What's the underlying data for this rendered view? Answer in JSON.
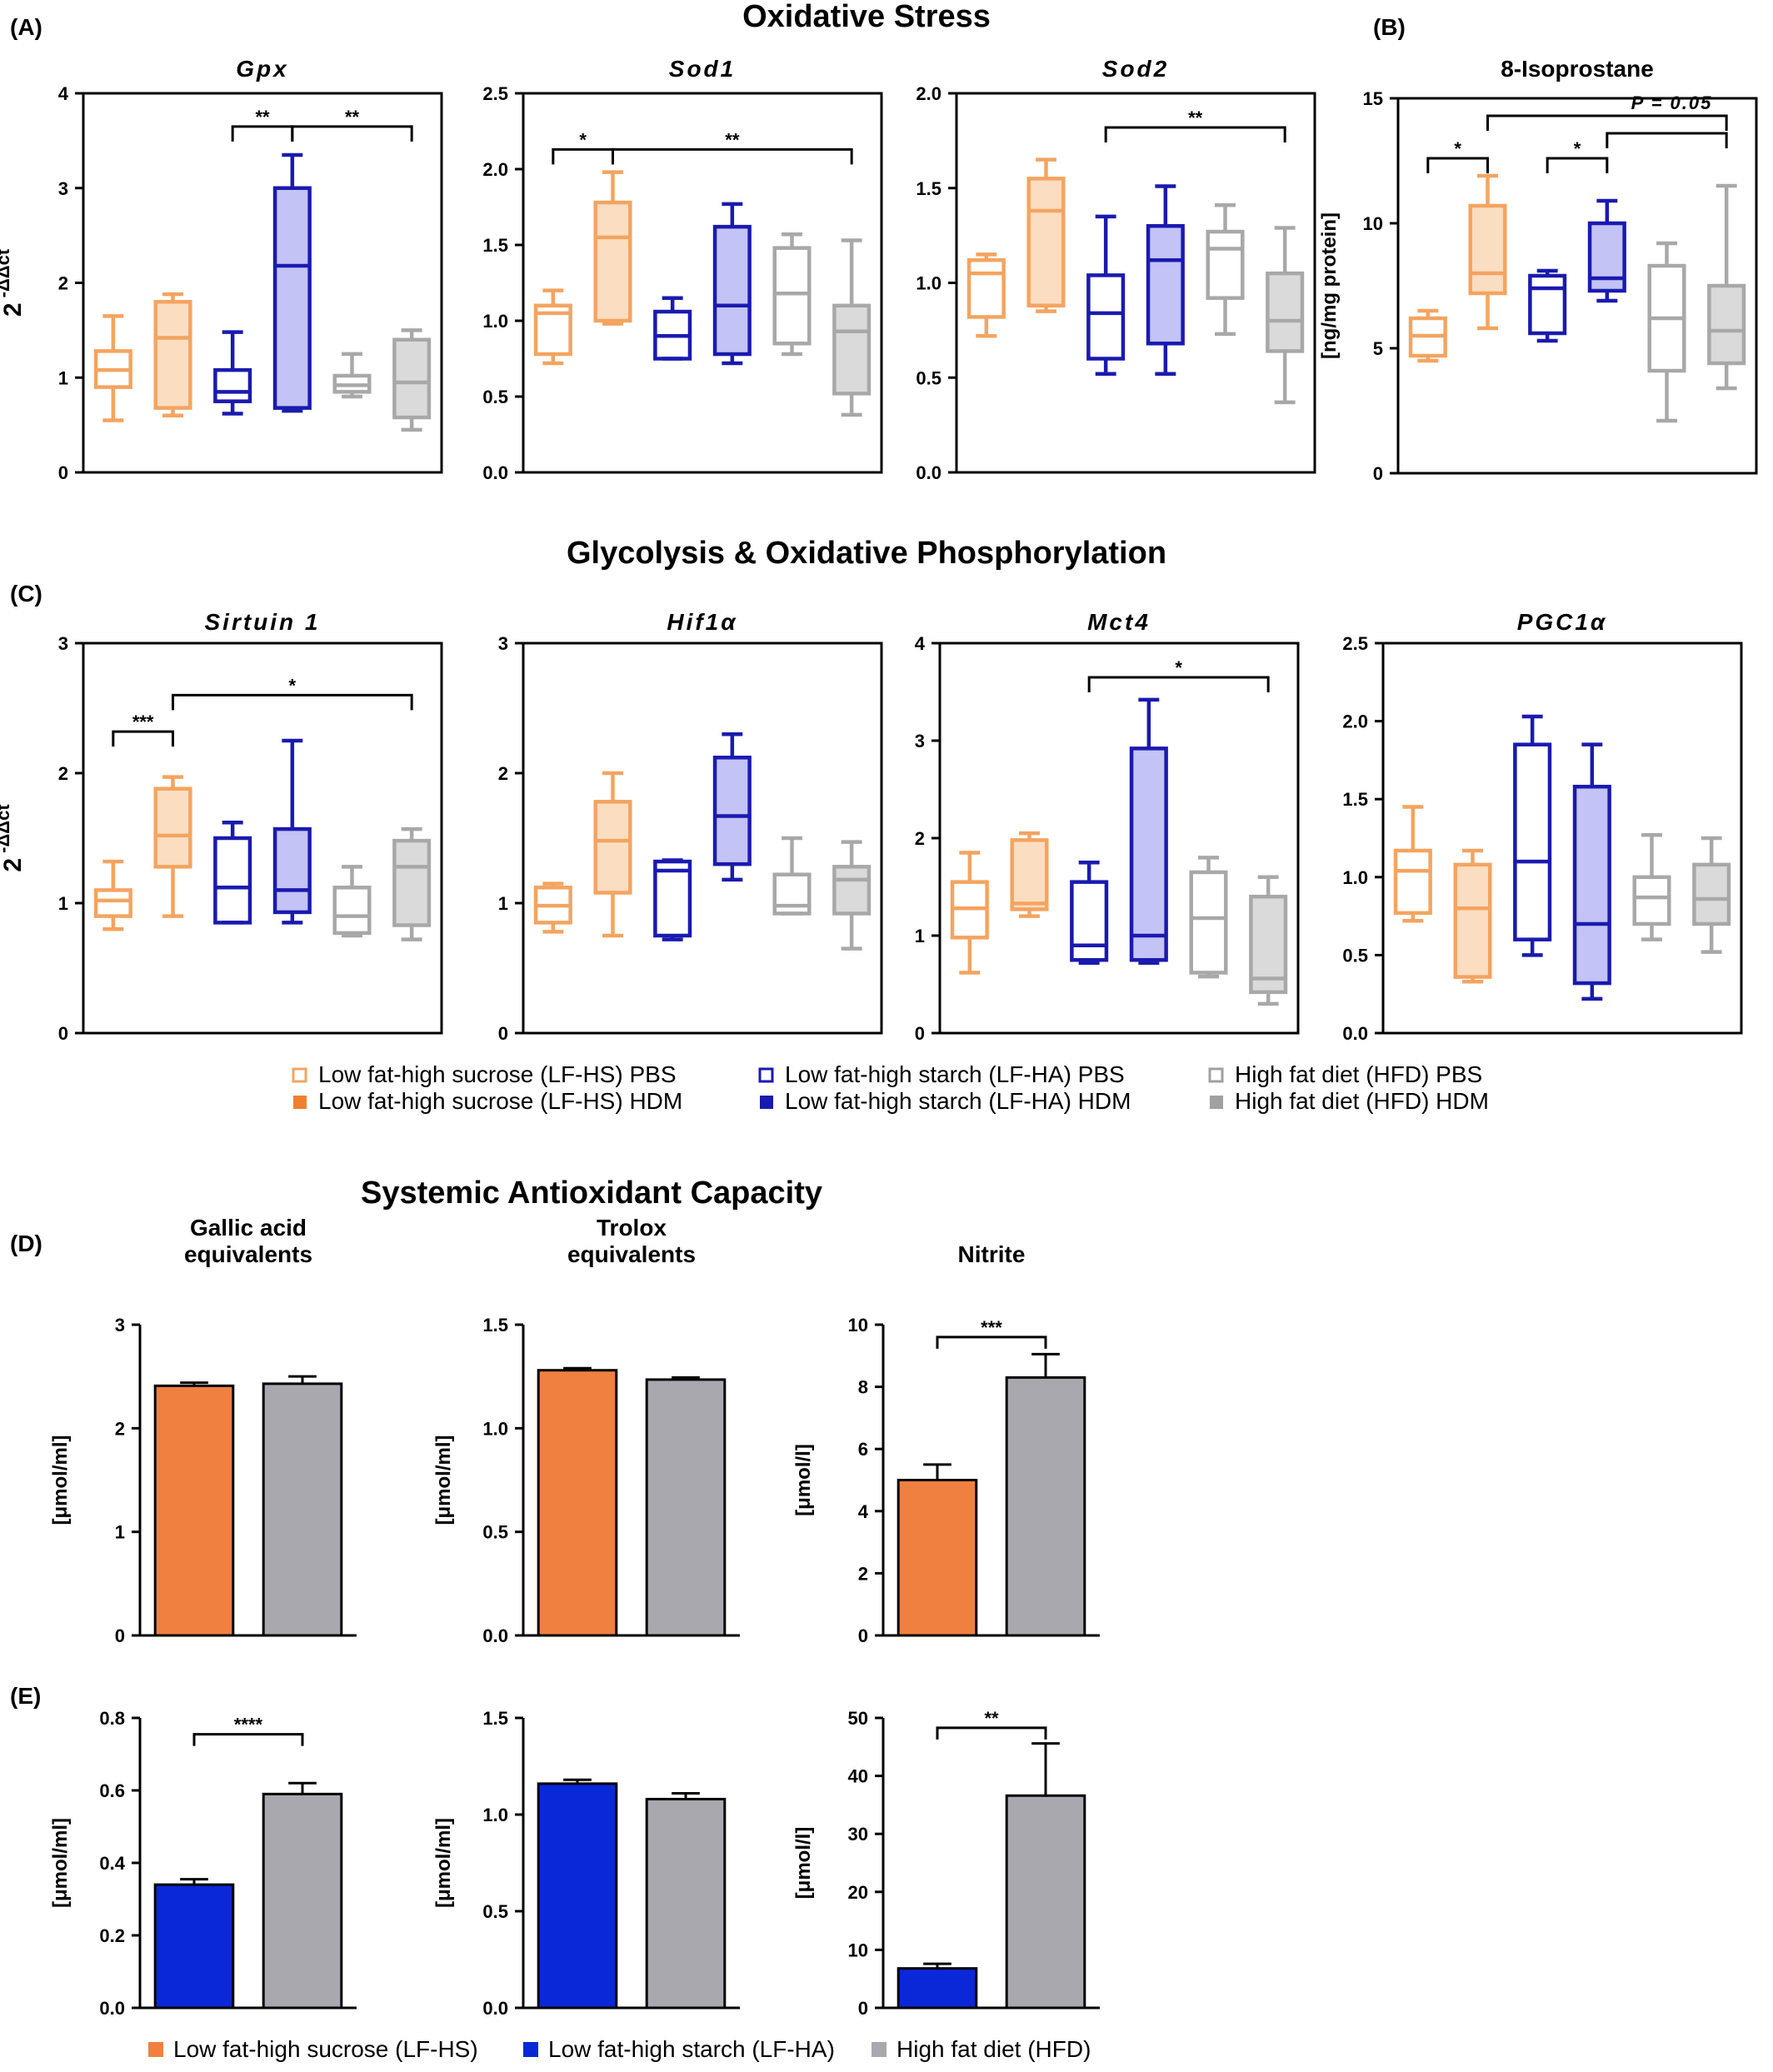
{
  "sections": {
    "oxidative_stress": "Oxidative Stress",
    "glycolysis": "Glycolysis & Oxidative Phosphorylation",
    "systemic": "Systemic Antioxidant Capacity"
  },
  "panel_letters": {
    "A": "(A)",
    "B": "(B)",
    "C": "(C)",
    "D": "(D)",
    "E": "(E)"
  },
  "legend_box": {
    "items": [
      {
        "label": "Low fat-high sucrose (LF-HS) PBS",
        "color": "#F4A460",
        "style": "open"
      },
      {
        "label": "Low fat-high sucrose (LF-HS) HDM",
        "color": "#F08030",
        "style": "filled"
      },
      {
        "label": "Low fat-high starch (LF-HA) PBS",
        "color": "#1A1AB0",
        "style": "open"
      },
      {
        "label": "Low fat-high starch (LF-HA) HDM",
        "color": "#1A1AB0",
        "style": "filled"
      },
      {
        "label": "High fat diet (HFD) PBS",
        "color": "#A0A0A0",
        "style": "open"
      },
      {
        "label": "High fat diet (HFD) HDM",
        "color": "#A0A0A0",
        "style": "filled"
      }
    ]
  },
  "legend_bar": {
    "items": [
      {
        "label": "Low fat-high sucrose (LF-HS)",
        "color": "#F08040"
      },
      {
        "label": "Low fat-high starch (LF-HA)",
        "color": "#0A28D8"
      },
      {
        "label": "High fat diet (HFD)",
        "color": "#A8A8AE"
      }
    ]
  },
  "colors": {
    "orange_line": "#F4A460",
    "orange_fill": "#FBDDC2",
    "blue_line": "#1A1AB0",
    "blue_fill": "#C3C3F5",
    "gray_line": "#A8A8A8",
    "gray_fill": "#DADADA",
    "bar_orange": "#F08040",
    "bar_blue": "#0A28D8",
    "bar_gray": "#A8A8AE"
  },
  "chart_data": [
    {
      "id": "gpx",
      "type": "box",
      "title": "Gpx",
      "title_style": "italic",
      "ylabel": "2 -ΔΔct",
      "ylim": [
        0,
        4
      ],
      "yticks": [
        "0",
        "1",
        "2",
        "3",
        "4"
      ],
      "groups": [
        {
          "series": "LF-HS PBS",
          "min": 0.55,
          "q1": 0.9,
          "median": 1.08,
          "q3": 1.28,
          "max": 1.65
        },
        {
          "series": "LF-HS HDM",
          "min": 0.6,
          "q1": 0.68,
          "median": 1.42,
          "q3": 1.8,
          "max": 1.88
        },
        {
          "series": "LF-HA PBS",
          "min": 0.62,
          "q1": 0.75,
          "median": 0.85,
          "q3": 1.08,
          "max": 1.48
        },
        {
          "series": "LF-HA HDM",
          "min": 0.65,
          "q1": 0.68,
          "median": 2.18,
          "q3": 3.0,
          "max": 3.35
        },
        {
          "series": "HFD PBS",
          "min": 0.8,
          "q1": 0.85,
          "median": 0.92,
          "q3": 1.02,
          "max": 1.25
        },
        {
          "series": "HFD HDM",
          "min": 0.45,
          "q1": 0.58,
          "median": 0.95,
          "q3": 1.4,
          "max": 1.5
        }
      ],
      "brackets": [
        {
          "from": 3,
          "to": 4,
          "label": "**",
          "y": 3.65
        },
        {
          "from": 4,
          "to": 6,
          "label": "**",
          "y": 3.65
        }
      ]
    },
    {
      "id": "sod1",
      "type": "box",
      "title": "Sod1",
      "title_style": "italic",
      "ylim": [
        0,
        2.5
      ],
      "yticks": [
        "0.0",
        "0.5",
        "1.0",
        "1.5",
        "2.0",
        "2.5"
      ],
      "groups": [
        {
          "series": "LF-HS PBS",
          "min": 0.72,
          "q1": 0.78,
          "median": 1.05,
          "q3": 1.1,
          "max": 1.2
        },
        {
          "series": "LF-HS HDM",
          "min": 0.98,
          "q1": 1.0,
          "median": 1.55,
          "q3": 1.78,
          "max": 1.98
        },
        {
          "series": "LF-HA PBS",
          "min": 0.75,
          "q1": 0.75,
          "median": 0.9,
          "q3": 1.06,
          "max": 1.15
        },
        {
          "series": "LF-HA HDM",
          "min": 0.72,
          "q1": 0.78,
          "median": 1.1,
          "q3": 1.62,
          "max": 1.77
        },
        {
          "series": "HFD PBS",
          "min": 0.78,
          "q1": 0.85,
          "median": 1.18,
          "q3": 1.48,
          "max": 1.57
        },
        {
          "series": "HFD HDM",
          "min": 0.38,
          "q1": 0.52,
          "median": 0.93,
          "q3": 1.1,
          "max": 1.53
        }
      ],
      "brackets": [
        {
          "from": 1,
          "to": 2,
          "label": "*",
          "y": 2.13
        },
        {
          "from": 2,
          "to": 6,
          "label": "**",
          "y": 2.13
        }
      ]
    },
    {
      "id": "sod2",
      "type": "box",
      "title": "Sod2",
      "title_style": "italic",
      "ylim": [
        0,
        2.0
      ],
      "yticks": [
        "0.0",
        "0.5",
        "1.0",
        "1.5",
        "2.0"
      ],
      "groups": [
        {
          "series": "LF-HS PBS",
          "min": 0.72,
          "q1": 0.82,
          "median": 1.05,
          "q3": 1.12,
          "max": 1.15
        },
        {
          "series": "LF-HS HDM",
          "min": 0.85,
          "q1": 0.88,
          "median": 1.38,
          "q3": 1.55,
          "max": 1.65
        },
        {
          "series": "LF-HA PBS",
          "min": 0.52,
          "q1": 0.6,
          "median": 0.84,
          "q3": 1.04,
          "max": 1.35
        },
        {
          "series": "LF-HA HDM",
          "min": 0.52,
          "q1": 0.68,
          "median": 1.12,
          "q3": 1.3,
          "max": 1.51
        },
        {
          "series": "HFD PBS",
          "min": 0.73,
          "q1": 0.92,
          "median": 1.18,
          "q3": 1.27,
          "max": 1.41
        },
        {
          "series": "HFD HDM",
          "min": 0.37,
          "q1": 0.64,
          "median": 0.8,
          "q3": 1.05,
          "max": 1.29
        }
      ],
      "brackets": [
        {
          "from": 3,
          "to": 6,
          "label": "**",
          "y": 1.82
        }
      ]
    },
    {
      "id": "isoprostane",
      "type": "box",
      "title": "8-Isoprostane",
      "title_style": "bold",
      "ylabel": "[ng/mg protein]",
      "ylim": [
        0,
        15
      ],
      "yticks": [
        "0",
        "5",
        "10",
        "15"
      ],
      "groups": [
        {
          "series": "LF-HS PBS",
          "min": 4.5,
          "q1": 4.7,
          "median": 5.5,
          "q3": 6.2,
          "max": 6.5
        },
        {
          "series": "LF-HS HDM",
          "min": 5.8,
          "q1": 7.2,
          "median": 8.0,
          "q3": 10.7,
          "max": 11.9
        },
        {
          "series": "LF-HA PBS",
          "min": 5.3,
          "q1": 5.6,
          "median": 7.4,
          "q3": 7.9,
          "max": 8.1
        },
        {
          "series": "LF-HA HDM",
          "min": 6.9,
          "q1": 7.3,
          "median": 7.8,
          "q3": 10.0,
          "max": 10.9
        },
        {
          "series": "HFD PBS",
          "min": 2.1,
          "q1": 4.1,
          "median": 6.2,
          "q3": 8.3,
          "max": 9.2
        },
        {
          "series": "HFD HDM",
          "min": 3.4,
          "q1": 4.4,
          "median": 5.7,
          "q3": 7.5,
          "max": 11.5
        }
      ],
      "brackets": [
        {
          "from": 1,
          "to": 2,
          "label": "*",
          "y": 12.6
        },
        {
          "from": 3,
          "to": 4,
          "label": "*",
          "y": 12.6
        },
        {
          "from": 2,
          "to": 6,
          "label": "",
          "y": 14.3
        },
        {
          "from": 4,
          "to": 6,
          "label": "",
          "y": 13.6
        }
      ],
      "annotation": "P = 0.05"
    },
    {
      "id": "sirtuin1",
      "type": "box",
      "title": "Sirtuin 1",
      "title_style": "italic",
      "ylabel": "2 -ΔΔct",
      "ylim": [
        0,
        3
      ],
      "yticks": [
        "0",
        "1",
        "2",
        "3"
      ],
      "groups": [
        {
          "series": "LF-HS PBS",
          "min": 0.8,
          "q1": 0.9,
          "median": 1.02,
          "q3": 1.1,
          "max": 1.32
        },
        {
          "series": "LF-HS HDM",
          "min": 0.9,
          "q1": 1.28,
          "median": 1.52,
          "q3": 1.88,
          "max": 1.97
        },
        {
          "series": "LF-HA PBS",
          "min": 0.85,
          "q1": 0.85,
          "median": 1.12,
          "q3": 1.5,
          "max": 1.62
        },
        {
          "series": "LF-HA HDM",
          "min": 0.85,
          "q1": 0.93,
          "median": 1.1,
          "q3": 1.57,
          "max": 2.25
        },
        {
          "series": "HFD PBS",
          "min": 0.75,
          "q1": 0.77,
          "median": 0.9,
          "q3": 1.12,
          "max": 1.28
        },
        {
          "series": "HFD HDM",
          "min": 0.72,
          "q1": 0.83,
          "median": 1.28,
          "q3": 1.48,
          "max": 1.57
        }
      ],
      "brackets": [
        {
          "from": 1,
          "to": 2,
          "label": "***",
          "y": 2.32
        },
        {
          "from": 2,
          "to": 6,
          "label": "*",
          "y": 2.6
        }
      ]
    },
    {
      "id": "hif1a",
      "type": "box",
      "title": "Hif1α",
      "title_style": "italic",
      "ylim": [
        0,
        3
      ],
      "yticks": [
        "0",
        "1",
        "2",
        "3"
      ],
      "groups": [
        {
          "series": "LF-HS PBS",
          "min": 0.78,
          "q1": 0.85,
          "median": 0.98,
          "q3": 1.12,
          "max": 1.15
        },
        {
          "series": "LF-HS HDM",
          "min": 0.75,
          "q1": 1.08,
          "median": 1.48,
          "q3": 1.78,
          "max": 2.0
        },
        {
          "series": "LF-HA PBS",
          "min": 0.72,
          "q1": 0.75,
          "median": 1.25,
          "q3": 1.32,
          "max": 1.33
        },
        {
          "series": "LF-HA HDM",
          "min": 1.18,
          "q1": 1.3,
          "median": 1.67,
          "q3": 2.12,
          "max": 2.3
        },
        {
          "series": "HFD PBS",
          "min": 0.92,
          "q1": 0.92,
          "median": 0.98,
          "q3": 1.22,
          "max": 1.5
        },
        {
          "series": "HFD HDM",
          "min": 0.65,
          "q1": 0.92,
          "median": 1.18,
          "q3": 1.28,
          "max": 1.47
        }
      ],
      "brackets": []
    },
    {
      "id": "mct4",
      "type": "box",
      "title": "Mct4",
      "title_style": "italic",
      "ylim": [
        0,
        4
      ],
      "yticks": [
        "0",
        "1",
        "2",
        "3",
        "4"
      ],
      "groups": [
        {
          "series": "LF-HS PBS",
          "min": 0.62,
          "q1": 0.98,
          "median": 1.28,
          "q3": 1.55,
          "max": 1.85
        },
        {
          "series": "LF-HS HDM",
          "min": 1.2,
          "q1": 1.27,
          "median": 1.33,
          "q3": 1.98,
          "max": 2.05
        },
        {
          "series": "LF-HA PBS",
          "min": 0.72,
          "q1": 0.75,
          "median": 0.9,
          "q3": 1.55,
          "max": 1.75
        },
        {
          "series": "LF-HA HDM",
          "min": 0.72,
          "q1": 0.75,
          "median": 1.0,
          "q3": 2.92,
          "max": 3.42
        },
        {
          "series": "HFD PBS",
          "min": 0.58,
          "q1": 0.62,
          "median": 1.18,
          "q3": 1.65,
          "max": 1.8
        },
        {
          "series": "HFD HDM",
          "min": 0.3,
          "q1": 0.42,
          "median": 0.56,
          "q3": 1.4,
          "max": 1.6
        }
      ],
      "brackets": [
        {
          "from": 3,
          "to": 6,
          "label": "*",
          "y": 3.65
        }
      ]
    },
    {
      "id": "pgc1a",
      "type": "box",
      "title": "PGC1α",
      "title_style": "italic",
      "ylim": [
        0,
        2.5
      ],
      "yticks": [
        "0.0",
        "0.5",
        "1.0",
        "1.5",
        "2.0",
        "2.5"
      ],
      "groups": [
        {
          "series": "LF-HS PBS",
          "min": 0.72,
          "q1": 0.77,
          "median": 1.04,
          "q3": 1.17,
          "max": 1.45
        },
        {
          "series": "LF-HS HDM",
          "min": 0.33,
          "q1": 0.36,
          "median": 0.8,
          "q3": 1.08,
          "max": 1.17
        },
        {
          "series": "LF-HA PBS",
          "min": 0.5,
          "q1": 0.6,
          "median": 1.1,
          "q3": 1.85,
          "max": 2.03
        },
        {
          "series": "LF-HA HDM",
          "min": 0.22,
          "q1": 0.32,
          "median": 0.7,
          "q3": 1.58,
          "max": 1.85
        },
        {
          "series": "HFD PBS",
          "min": 0.6,
          "q1": 0.7,
          "median": 0.87,
          "q3": 1.0,
          "max": 1.27
        },
        {
          "series": "HFD HDM",
          "min": 0.52,
          "q1": 0.7,
          "median": 0.86,
          "q3": 1.08,
          "max": 1.25
        }
      ],
      "brackets": []
    },
    {
      "id": "gallic",
      "type": "bar",
      "title": "Gallic acid\nequivalents",
      "ylabel": "[μmol/ml]",
      "ylim": [
        0,
        3
      ],
      "yticks": [
        "0",
        "1",
        "2",
        "3"
      ],
      "categories": [
        "LF-HS",
        "HFD"
      ],
      "values": [
        2.41,
        2.43
      ],
      "errors": [
        0.03,
        0.07
      ],
      "bar_colors": [
        "bar_orange",
        "bar_gray"
      ],
      "brackets": []
    },
    {
      "id": "trolox",
      "type": "bar",
      "title": "Trolox\nequivalents",
      "ylabel": "[μmol/ml]",
      "ylim": [
        0,
        1.5
      ],
      "yticks": [
        "0.0",
        "0.5",
        "1.0",
        "1.5"
      ],
      "categories": [
        "LF-HS",
        "HFD"
      ],
      "values": [
        1.28,
        1.235
      ],
      "errors": [
        0.01,
        0.01
      ],
      "bar_colors": [
        "bar_orange",
        "bar_gray"
      ],
      "brackets": []
    },
    {
      "id": "nitrite",
      "type": "bar",
      "title": "Nitrite",
      "ylabel": "[μmol/l]",
      "ylim": [
        0,
        10
      ],
      "yticks": [
        "0",
        "2",
        "4",
        "6",
        "8",
        "10"
      ],
      "categories": [
        "LF-HS",
        "HFD"
      ],
      "values": [
        5.0,
        8.3
      ],
      "errors": [
        0.5,
        0.75
      ],
      "bar_colors": [
        "bar_orange",
        "bar_gray"
      ],
      "brackets": [
        {
          "from": 1,
          "to": 2,
          "label": "***",
          "y": 9.6
        }
      ]
    },
    {
      "id": "gallic_e",
      "type": "bar",
      "ylabel": "[μmol/ml]",
      "ylim": [
        0,
        0.8
      ],
      "yticks": [
        "0.0",
        "0.2",
        "0.4",
        "0.6",
        "0.8"
      ],
      "categories": [
        "LF-HA",
        "HFD"
      ],
      "values": [
        0.34,
        0.59
      ],
      "errors": [
        0.015,
        0.03
      ],
      "bar_colors": [
        "bar_blue",
        "bar_gray"
      ],
      "brackets": [
        {
          "from": 1,
          "to": 2,
          "label": "****",
          "y": 0.755
        }
      ]
    },
    {
      "id": "trolox_e",
      "type": "bar",
      "ylabel": "[μmol/ml]",
      "ylim": [
        0,
        1.5
      ],
      "yticks": [
        "0.0",
        "0.5",
        "1.0",
        "1.5"
      ],
      "categories": [
        "LF-HA",
        "HFD"
      ],
      "values": [
        1.16,
        1.08
      ],
      "errors": [
        0.02,
        0.03
      ],
      "bar_colors": [
        "bar_blue",
        "bar_gray"
      ],
      "brackets": []
    },
    {
      "id": "nitrite_e",
      "type": "bar",
      "ylabel": "[μmol/l]",
      "ylim": [
        0,
        50
      ],
      "yticks": [
        "0",
        "10",
        "20",
        "30",
        "40",
        "50"
      ],
      "categories": [
        "LF-HA",
        "HFD"
      ],
      "values": [
        6.8,
        36.6
      ],
      "errors": [
        0.8,
        9.0
      ],
      "bar_colors": [
        "bar_blue",
        "bar_gray"
      ],
      "brackets": [
        {
          "from": 1,
          "to": 2,
          "label": "**",
          "y": 48.3
        }
      ]
    }
  ]
}
